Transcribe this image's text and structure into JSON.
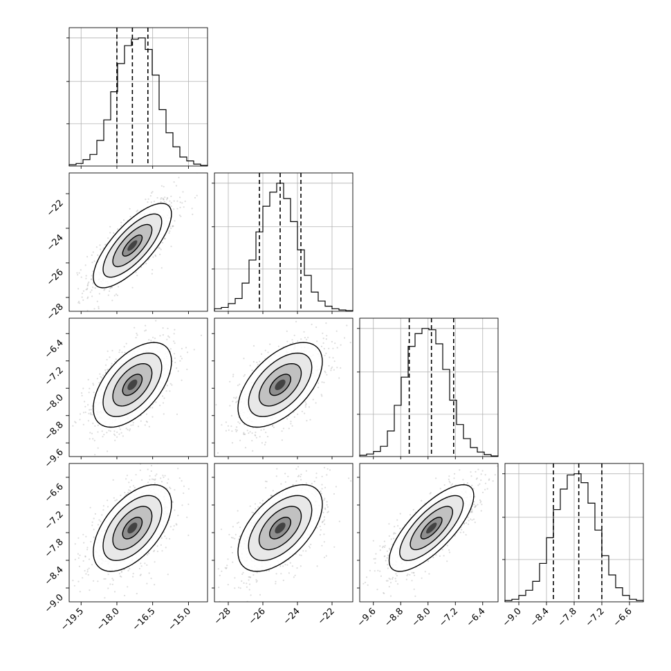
{
  "chart_data": {
    "type": "corner",
    "title": "",
    "parameters": [
      {
        "name": "",
        "range": [
          -20.0,
          -14.2
        ],
        "ticks": [
          -19.5,
          -18.0,
          -16.5,
          -15.0
        ],
        "tick_labels": [
          "−19.5",
          "−18.0",
          "−16.5",
          "−15.0"
        ],
        "quantiles": [
          -18.0,
          -17.35,
          -16.7
        ],
        "histogram": [
          0.01,
          0.02,
          0.05,
          0.09,
          0.2,
          0.36,
          0.58,
          0.8,
          0.94,
          0.99,
          1.0,
          0.91,
          0.71,
          0.44,
          0.26,
          0.15,
          0.07,
          0.04,
          0.015,
          0.005
        ]
      },
      {
        "name": "",
        "range": [
          -28.8,
          -20.8
        ],
        "ticks": [
          -28,
          -26,
          -24,
          -22
        ],
        "tick_labels": [
          "−28",
          "−26",
          "−24",
          "−22"
        ],
        "quantiles": [
          -26.2,
          -25.0,
          -23.8
        ],
        "histogram": [
          0.02,
          0.03,
          0.06,
          0.1,
          0.22,
          0.4,
          0.62,
          0.82,
          0.93,
          1.0,
          0.88,
          0.7,
          0.48,
          0.28,
          0.15,
          0.08,
          0.04,
          0.02,
          0.01,
          0.005
        ]
      },
      {
        "name": "",
        "range": [
          -10.0,
          -5.95
        ],
        "ticks": [
          -9.6,
          -8.8,
          -8.0,
          -7.2,
          -6.4
        ],
        "tick_labels": [
          "−9.6",
          "−8.8",
          "−8.0",
          "−7.2",
          "−6.4"
        ],
        "quantiles": [
          -8.55,
          -7.9,
          -7.25
        ],
        "histogram": [
          0.01,
          0.02,
          0.04,
          0.08,
          0.2,
          0.4,
          0.62,
          0.86,
          0.96,
          1.0,
          0.99,
          0.88,
          0.68,
          0.44,
          0.25,
          0.14,
          0.07,
          0.035,
          0.015,
          0.005
        ]
      },
      {
        "name": "",
        "range": [
          -9.3,
          -6.3
        ],
        "ticks": [
          -9.0,
          -8.4,
          -7.8,
          -7.2,
          -6.6
        ],
        "tick_labels": [
          "−9.0",
          "−8.4",
          "−7.8",
          "−7.2",
          "−6.6"
        ],
        "quantiles": [
          -8.25,
          -7.7,
          -7.2
        ],
        "histogram": [
          0.01,
          0.02,
          0.05,
          0.09,
          0.16,
          0.3,
          0.5,
          0.72,
          0.88,
          0.99,
          1.0,
          0.93,
          0.77,
          0.56,
          0.36,
          0.21,
          0.11,
          0.05,
          0.02,
          0.01
        ]
      }
    ],
    "pairs": [
      {
        "row": 1,
        "col": 0,
        "center": [
          -17.35,
          -25.0
        ],
        "sd": [
          0.82,
          1.22
        ],
        "rho": 0.75
      },
      {
        "row": 2,
        "col": 0,
        "center": [
          -17.35,
          -7.9
        ],
        "sd": [
          0.82,
          0.62
        ],
        "rho": 0.55
      },
      {
        "row": 2,
        "col": 1,
        "center": [
          -25.0,
          -7.9
        ],
        "sd": [
          1.22,
          0.62
        ],
        "rho": 0.55
      },
      {
        "row": 3,
        "col": 0,
        "center": [
          -17.35,
          -7.7
        ],
        "sd": [
          0.82,
          0.47
        ],
        "rho": 0.55
      },
      {
        "row": 3,
        "col": 1,
        "center": [
          -25.0,
          -7.7
        ],
        "sd": [
          1.22,
          0.47
        ],
        "rho": 0.55
      },
      {
        "row": 3,
        "col": 2,
        "center": [
          -7.9,
          -7.7
        ],
        "sd": [
          0.62,
          0.47
        ],
        "rho": 0.75
      }
    ],
    "contour_levels_sigma": [
      0.5,
      1.0,
      1.5,
      2.0
    ],
    "grid": true,
    "colors": {
      "hist": "#000000",
      "scatter": "#9a9a9a",
      "density_dark": "#000000"
    }
  }
}
